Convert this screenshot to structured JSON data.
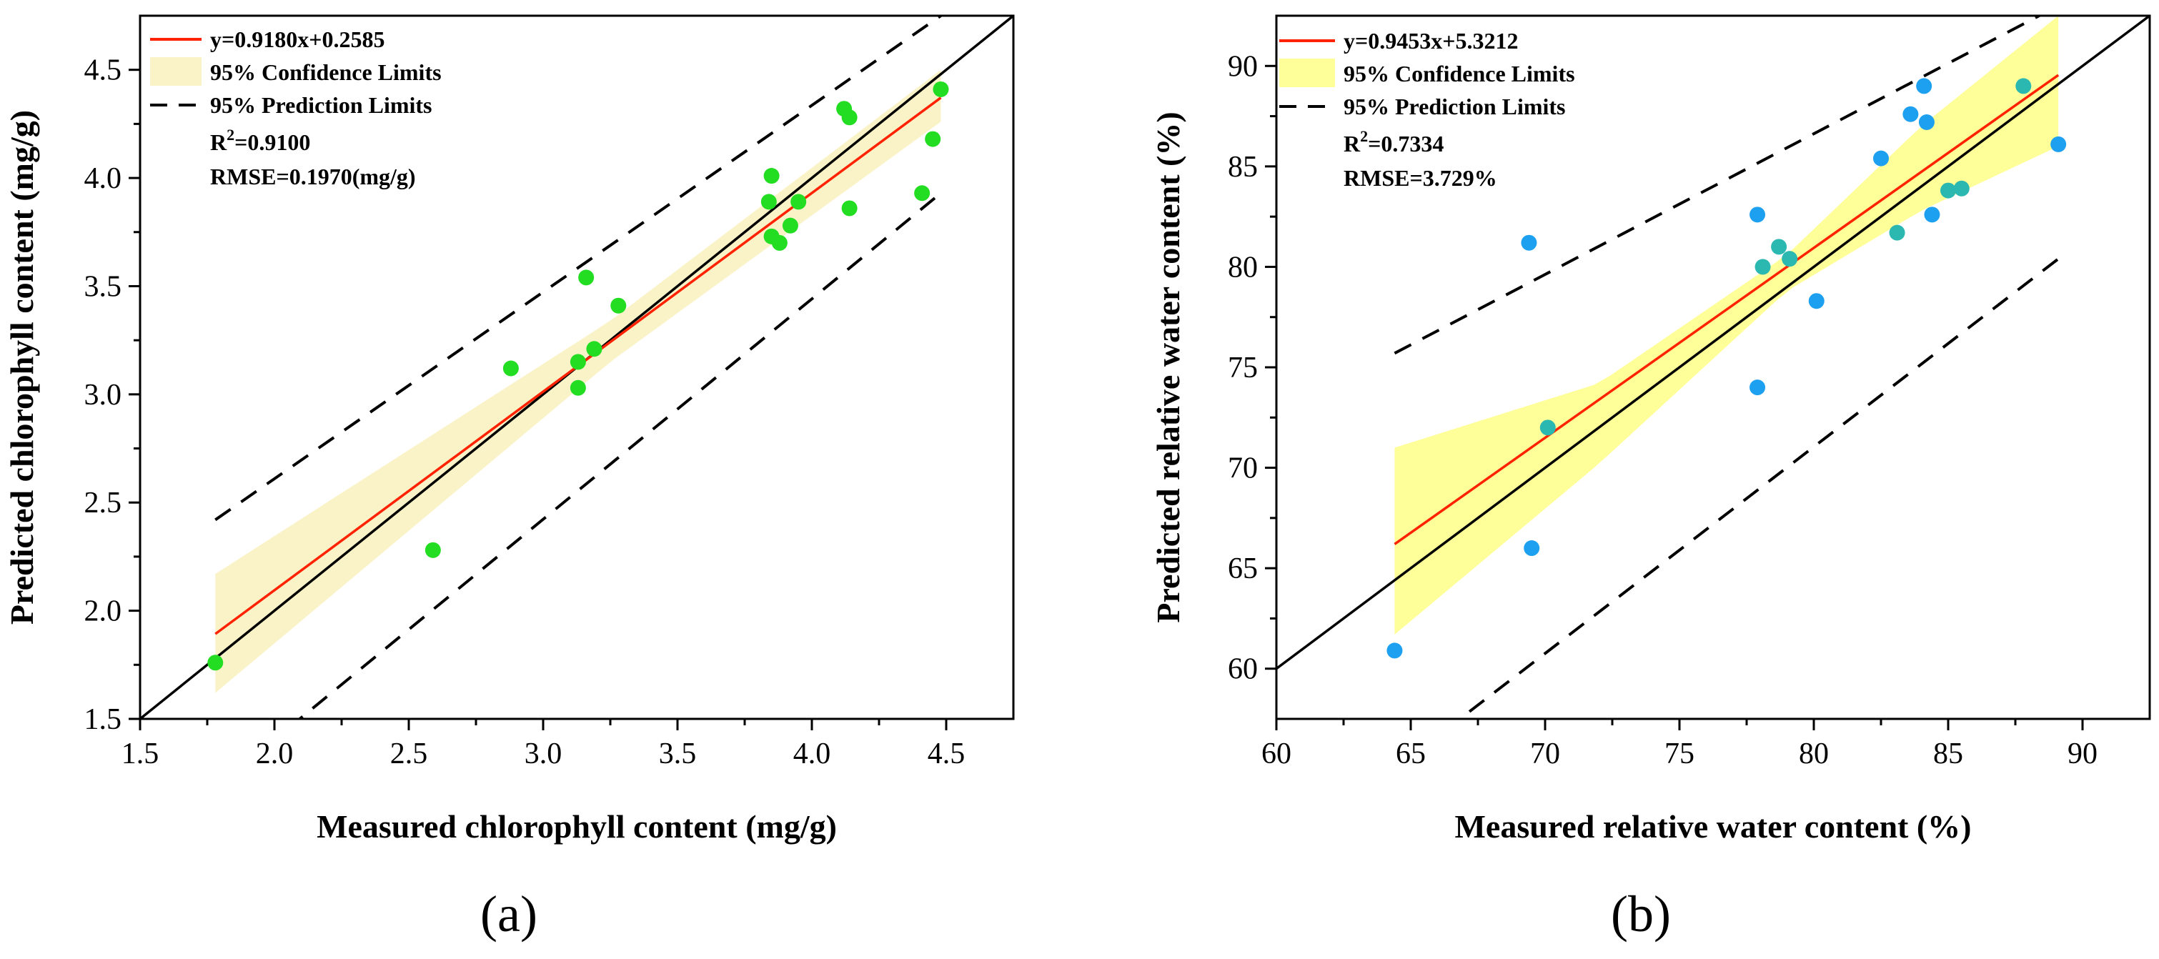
{
  "chart_data": [
    {
      "type": "scatter",
      "panel_label": "(a)",
      "xlabel": "Measured chlorophyll content (mg/g)",
      "ylabel": "Predicted chlorophyll content (mg/g)",
      "xlim": [
        1.5,
        4.75
      ],
      "ylim": [
        1.5,
        4.75
      ],
      "xticks": [
        1.5,
        2.0,
        2.5,
        3.0,
        3.5,
        4.0,
        4.5
      ],
      "yticks": [
        1.5,
        2.0,
        2.5,
        3.0,
        3.5,
        4.0,
        4.5
      ],
      "tick_labels": [
        "1.5",
        "2.0",
        "2.5",
        "3.0",
        "3.5",
        "4.0",
        "4.5"
      ],
      "grid": false,
      "legend_position": "top-left",
      "point_color": "#22dd22",
      "fit_color": "#ff2200",
      "band_color": "#fbf3c8",
      "legend": {
        "fit": "y=0.9180x+0.2585",
        "confidence": "95% Confidence Limits",
        "prediction": "95% Prediction Limits",
        "r2_prefix": "R",
        "r2_sup": "2",
        "r2_value": "=0.9100",
        "rmse": "RMSE=0.1970(mg/g)"
      },
      "fit": {
        "slope": 0.918,
        "intercept": 0.2585,
        "x_range": [
          1.78,
          4.48
        ]
      },
      "confidence_band": {
        "x": [
          1.78,
          3.25,
          4.48
        ],
        "lower": [
          1.62,
          3.15,
          4.26
        ],
        "upper": [
          2.17,
          3.34,
          4.5
        ]
      },
      "prediction_band": {
        "x": [
          1.78,
          4.48
        ],
        "lower": [
          1.18,
          3.93
        ],
        "upper": [
          2.42,
          4.75
        ]
      },
      "identity_line": true,
      "points": {
        "x": [
          1.78,
          2.59,
          2.88,
          3.13,
          3.13,
          3.16,
          3.19,
          3.28,
          3.84,
          3.85,
          3.85,
          3.88,
          3.92,
          3.95,
          4.12,
          4.14,
          4.14,
          4.41,
          4.45,
          4.48
        ],
        "y": [
          1.76,
          2.28,
          3.12,
          3.15,
          3.03,
          3.54,
          3.21,
          3.41,
          3.89,
          4.01,
          3.73,
          3.7,
          3.78,
          3.89,
          4.32,
          4.28,
          3.86,
          3.93,
          4.18,
          4.41
        ]
      }
    },
    {
      "type": "scatter",
      "panel_label": "(b)",
      "xlabel": "Measured relative water content (%)",
      "ylabel": "Predicted relative water content (%)",
      "xlim": [
        60,
        92.5
      ],
      "ylim": [
        57.5,
        92.5
      ],
      "xticks": [
        60,
        65,
        70,
        75,
        80,
        85,
        90
      ],
      "yticks": [
        60,
        65,
        70,
        75,
        80,
        85,
        90
      ],
      "xtick_labels": [
        "60",
        "65",
        "70",
        "75",
        "80",
        "85",
        "90"
      ],
      "ytick_labels": [
        "60",
        "65",
        "70",
        "75",
        "80",
        "85",
        "90"
      ],
      "grid": false,
      "legend_position": "top-left",
      "point_color": "#1ea0f0",
      "point_color_in_band": "#2ab8b0",
      "fit_color": "#ff2200",
      "band_color": "#ffff99",
      "legend": {
        "fit": "y=0.9453x+5.3212",
        "confidence": "95% Confidence Limits",
        "prediction": "95% Prediction Limits",
        "r2_prefix": "R",
        "r2_sup": "2",
        "r2_value": "=0.7334",
        "rmse": "RMSE=3.729%"
      },
      "fit": {
        "slope": 0.9453,
        "intercept": 5.3212,
        "x_range": [
          64.4,
          89.1
        ]
      },
      "confidence_band": {
        "x": [
          64.4,
          72.0,
          79.0,
          84.0,
          89.1
        ],
        "lower": [
          61.7,
          70.2,
          78.8,
          82.8,
          86.0
        ],
        "upper": [
          71.0,
          74.2,
          80.6,
          87.0,
          92.5
        ]
      },
      "prediction_band": {
        "x": [
          64.4,
          89.1
        ],
        "lower": [
          55.0,
          80.4
        ],
        "upper": [
          75.7,
          93.0
        ]
      },
      "identity_line": true,
      "points": {
        "x": [
          64.4,
          69.4,
          69.5,
          70.1,
          77.9,
          77.9,
          78.1,
          78.7,
          79.1,
          80.1,
          82.5,
          83.1,
          83.6,
          84.1,
          84.2,
          84.4,
          85.0,
          85.5,
          87.8,
          89.1
        ],
        "y": [
          60.9,
          81.2,
          66.0,
          72.0,
          74.0,
          82.6,
          80.0,
          81.0,
          80.4,
          78.3,
          85.4,
          81.7,
          87.6,
          89.0,
          87.2,
          82.6,
          83.8,
          83.9,
          89.0,
          86.1
        ],
        "in_band": [
          false,
          false,
          false,
          true,
          false,
          false,
          true,
          true,
          true,
          false,
          false,
          true,
          false,
          false,
          false,
          false,
          true,
          true,
          true,
          false
        ]
      }
    }
  ]
}
